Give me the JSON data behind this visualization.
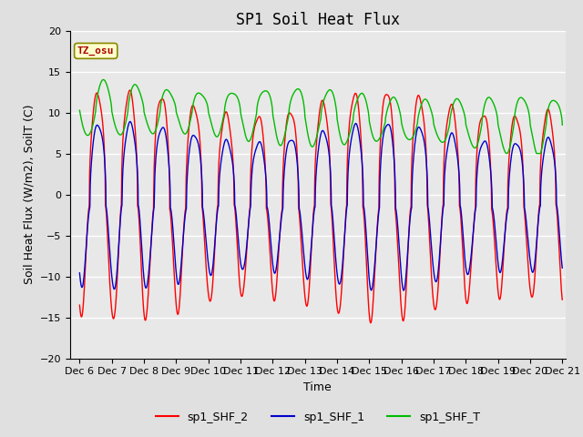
{
  "title": "SP1 Soil Heat Flux",
  "xlabel": "Time",
  "ylabel": "Soil Heat Flux (W/m2), SoilT (C)",
  "ylim": [
    -20,
    20
  ],
  "xlim_start": 5.7,
  "xlim_end": 21.1,
  "xtick_labels": [
    "Dec 6",
    "Dec 7",
    "Dec 8",
    "Dec 9",
    "Dec 10",
    "Dec 11",
    "Dec 12",
    "Dec 13",
    "Dec 14",
    "Dec 15",
    "Dec 16",
    "Dec 17",
    "Dec 18",
    "Dec 19",
    "Dec 20",
    "Dec 21"
  ],
  "xtick_positions": [
    6,
    7,
    8,
    9,
    10,
    11,
    12,
    13,
    14,
    15,
    16,
    17,
    18,
    19,
    20,
    21
  ],
  "yticks": [
    -20,
    -15,
    -10,
    -5,
    0,
    5,
    10,
    15,
    20
  ],
  "line_colors": {
    "sp1_SHF_2": "#ff0000",
    "sp1_SHF_1": "#0000cc",
    "sp1_SHF_T": "#00bb00"
  },
  "legend_labels": [
    "sp1_SHF_2",
    "sp1_SHF_1",
    "sp1_SHF_T"
  ],
  "tz_label": "TZ_osu",
  "background_color": "#e0e0e0",
  "plot_bg_color": "#e8e8e8",
  "grid_color": "#ffffff",
  "title_fontsize": 12,
  "label_fontsize": 9,
  "tick_fontsize": 8
}
